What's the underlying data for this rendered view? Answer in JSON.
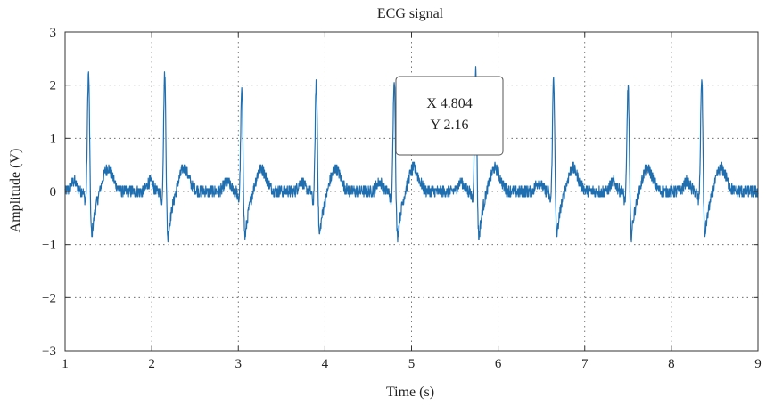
{
  "chart_data": {
    "type": "line",
    "title": "ECG signal",
    "xlabel": "Time (s)",
    "ylabel": "Amplitude (V)",
    "xlim": [
      1,
      9
    ],
    "ylim": [
      -3,
      3
    ],
    "xticks": [
      1,
      2,
      3,
      4,
      5,
      6,
      7,
      8,
      9
    ],
    "yticks": [
      3,
      2,
      1,
      0,
      -1,
      -2,
      -3
    ],
    "ytick_labels": [
      "3",
      "2",
      "1",
      "0",
      "−1",
      "−2",
      "−3"
    ],
    "grid": true,
    "series": [
      {
        "color": "#1f6fb0",
        "beats": [
          {
            "t": 1.27,
            "r_peak": 2.22,
            "s_trough": -1.45
          },
          {
            "t": 2.15,
            "r_peak": 2.22,
            "s_trough": -1.5
          },
          {
            "t": 3.04,
            "r_peak": 1.91,
            "s_trough": -1.5
          },
          {
            "t": 3.9,
            "r_peak": 2.09,
            "s_trough": -1.45
          },
          {
            "t": 4.8,
            "r_peak": 2.16,
            "s_trough": -1.5
          },
          {
            "t": 5.74,
            "r_peak": 2.31,
            "s_trough": -1.5
          },
          {
            "t": 6.64,
            "r_peak": 2.15,
            "s_trough": -1.45
          },
          {
            "t": 7.5,
            "r_peak": 1.99,
            "s_trough": -1.45
          },
          {
            "t": 8.35,
            "r_peak": 2.15,
            "s_trough": -1.45
          }
        ],
        "baseline": 0.0,
        "t_wave_amplitude": 0.45
      }
    ],
    "datatip": {
      "x_label": "X 4.804",
      "y_label": "Y 2.16",
      "x": 4.804,
      "y": 2.16
    }
  }
}
